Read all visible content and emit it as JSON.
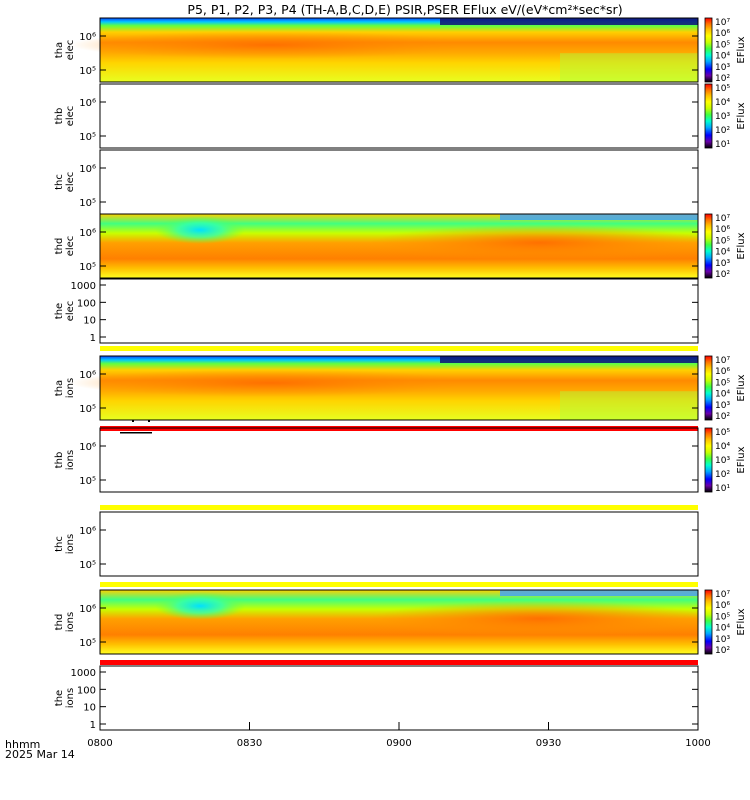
{
  "title": "P5, P1, P2, P3, P4 (TH-A,B,C,D,E) PSIR,PSER EFlux eV/(eV*cm²*sec*sr)",
  "footer": {
    "line1": "hhmm",
    "line2": "2025 Mar 14"
  },
  "x_ticks": [
    "0800",
    "0830",
    "0900",
    "0930",
    "1000"
  ],
  "colorbar_label": "EFlux",
  "colors": {
    "red_line": "#ff0000",
    "yellow_line": "#ffff00",
    "spectrum": [
      "#000000",
      "#6a00a8",
      "#0000ff",
      "#00a8ff",
      "#00ffd0",
      "#40ff40",
      "#c8ff00",
      "#ffff00",
      "#ffc000",
      "#ff7000",
      "#ff0000"
    ]
  },
  "chart_data": {
    "type": "heatmap",
    "xlabel": "",
    "xlim": [
      "0800",
      "1000"
    ],
    "panels": [
      {
        "name": "tha-elec",
        "label": [
          "tha",
          "elec"
        ],
        "has_data": true,
        "yticks": [
          "10⁶",
          "10⁵"
        ],
        "variant": "A",
        "colorbar_ticks": [
          "10⁷",
          "10⁶",
          "10⁵",
          "10⁴",
          "10³",
          "10²"
        ]
      },
      {
        "name": "thb-elec",
        "label": [
          "thb",
          "elec"
        ],
        "has_data": false,
        "yticks": [
          "10⁶",
          "10⁵"
        ],
        "colorbar_ticks": [
          "10⁵",
          "10⁴",
          "10³",
          "10²",
          "10¹"
        ]
      },
      {
        "name": "thc-elec",
        "label": [
          "thc",
          "elec"
        ],
        "has_data": false,
        "yticks": [
          "10⁶",
          "10⁵"
        ]
      },
      {
        "name": "thd-elec",
        "label": [
          "thd",
          "elec"
        ],
        "has_data": true,
        "yticks": [
          "10⁶",
          "10⁵"
        ],
        "variant": "D",
        "colorbar_ticks": [
          "10⁷",
          "10⁶",
          "10⁵",
          "10⁴",
          "10³",
          "10²"
        ]
      },
      {
        "name": "the-elec",
        "label": [
          "the",
          "elec"
        ],
        "has_data": false,
        "yticks": [
          "1000",
          "100",
          "10",
          "1"
        ],
        "bar_after": "yellow"
      },
      {
        "name": "tha-ions",
        "label": [
          "tha",
          "ions"
        ],
        "has_data": true,
        "yticks": [
          "10⁶",
          "10⁵"
        ],
        "variant": "A",
        "colorbar_ticks": [
          "10⁷",
          "10⁶",
          "10⁵",
          "10⁴",
          "10³",
          "10²"
        ],
        "bar_after": "red"
      },
      {
        "name": "thb-ions",
        "label": [
          "thb",
          "ions"
        ],
        "has_data": false,
        "yticks": [
          "10⁶",
          "10⁵"
        ],
        "colorbar_ticks": [
          "10⁵",
          "10⁴",
          "10³",
          "10²",
          "10¹"
        ],
        "bar_after": "yellow"
      },
      {
        "name": "thc-ions",
        "label": [
          "thc",
          "ions"
        ],
        "has_data": false,
        "yticks": [
          "10⁶",
          "10⁵"
        ],
        "bar_after": "yellow"
      },
      {
        "name": "thd-ions",
        "label": [
          "thd",
          "ions"
        ],
        "has_data": true,
        "yticks": [
          "10⁶",
          "10⁵"
        ],
        "variant": "D",
        "colorbar_ticks": [
          "10⁷",
          "10⁶",
          "10⁵",
          "10⁴",
          "10³",
          "10²"
        ],
        "bar_after": "red"
      },
      {
        "name": "the-ions",
        "label": [
          "the",
          "ions"
        ],
        "has_data": false,
        "yticks": [
          "1000",
          "100",
          "10",
          "1"
        ]
      }
    ]
  }
}
